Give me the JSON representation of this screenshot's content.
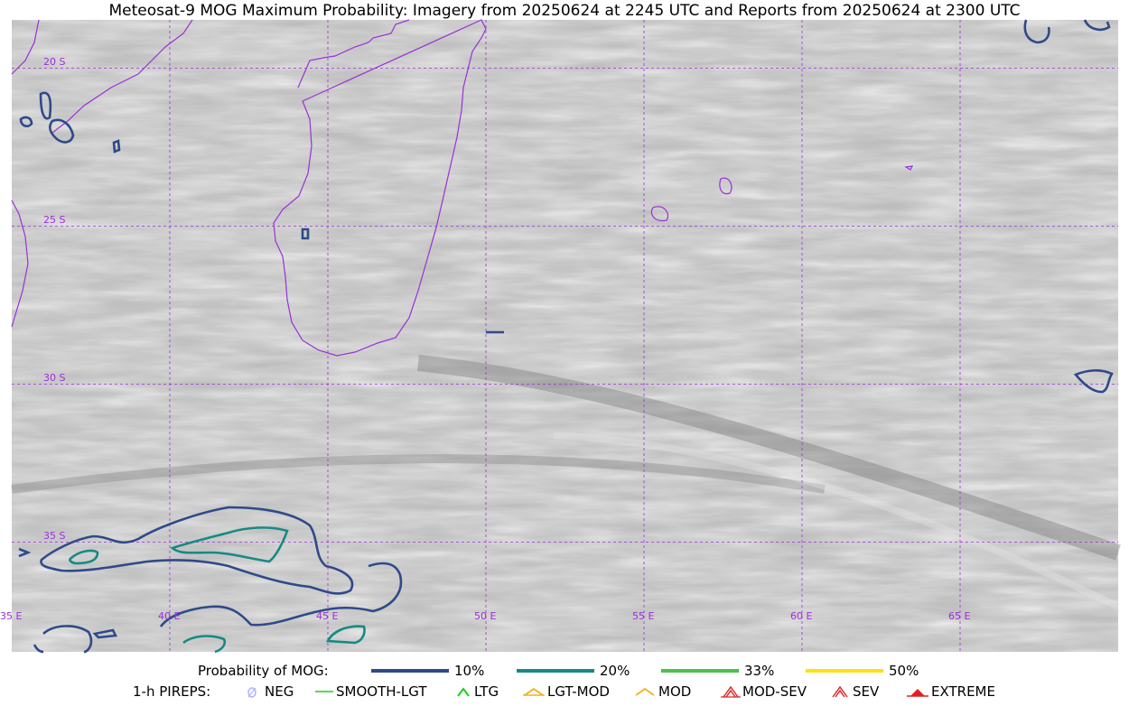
{
  "title": "Meteosat-9 MOG Maximum Probability: Imagery from 20250624 at 2245 UTC and Reports from 20250624 at 2300 UTC",
  "grid": {
    "longitudes": [
      {
        "label": "35 E",
        "value": 35
      },
      {
        "label": "40 E",
        "value": 40
      },
      {
        "label": "45 E",
        "value": 45
      },
      {
        "label": "50 E",
        "value": 50
      },
      {
        "label": "55 E",
        "value": 55
      },
      {
        "label": "60 E",
        "value": 60
      },
      {
        "label": "65 E",
        "value": 65
      }
    ],
    "latitudes": [
      {
        "label": "20 S",
        "value": -20
      },
      {
        "label": "25 S",
        "value": -25
      },
      {
        "label": "30 S",
        "value": -30
      },
      {
        "label": "35 S",
        "value": -35
      }
    ],
    "color": "#9b30d6"
  },
  "legend": {
    "probability_label": "Probability of MOG:",
    "probability_items": [
      {
        "label": "10%",
        "color": "#2f4a8a"
      },
      {
        "label": "20%",
        "color": "#168a84"
      },
      {
        "label": "33%",
        "color": "#4cc04c"
      },
      {
        "label": "50%",
        "color": "#ffe010"
      }
    ],
    "pireps_label": "1-h PIREPS:",
    "pireps_items": [
      {
        "label": "NEG",
        "icon": "neg-icon",
        "color": "#b0b0ff"
      },
      {
        "label": "SMOOTH-LGT",
        "icon": "smooth-lgt-icon",
        "color": "#22cc22"
      },
      {
        "label": "LTG",
        "icon": "ltg-icon",
        "color": "#22cc22"
      },
      {
        "label": "LGT-MOD",
        "icon": "lgt-mod-icon",
        "color": "#f0b020"
      },
      {
        "label": "MOD",
        "icon": "mod-icon",
        "color": "#f0b020"
      },
      {
        "label": "MOD-SEV",
        "icon": "mod-sev-icon",
        "color": "#e02020"
      },
      {
        "label": "SEV",
        "icon": "sev-icon",
        "color": "#e02020"
      },
      {
        "label": "EXTREME",
        "icon": "extreme-icon",
        "color": "#e02020"
      }
    ]
  },
  "colors": {
    "coastline": "#9b30d6",
    "contour_10": "#2f4a8a",
    "contour_20": "#168a84"
  }
}
